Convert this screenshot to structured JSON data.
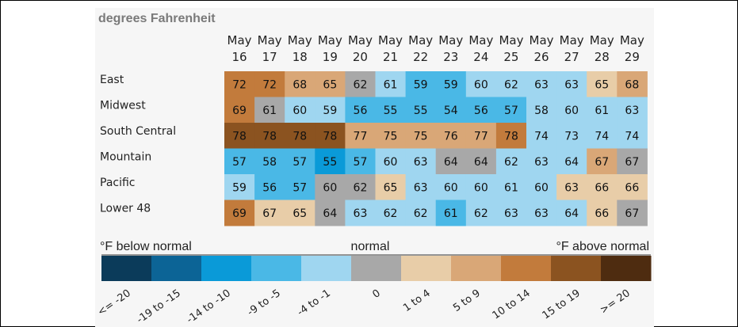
{
  "chart_data": {
    "type": "heatmap",
    "title": "degrees Fahrenheit",
    "columns": [
      [
        "May",
        "16"
      ],
      [
        "May",
        "17"
      ],
      [
        "May",
        "18"
      ],
      [
        "May",
        "19"
      ],
      [
        "May",
        "20"
      ],
      [
        "May",
        "21"
      ],
      [
        "May",
        "22"
      ],
      [
        "May",
        "23"
      ],
      [
        "May",
        "24"
      ],
      [
        "May",
        "25"
      ],
      [
        "May",
        "26"
      ],
      [
        "May",
        "27"
      ],
      [
        "May",
        "28"
      ],
      [
        "May",
        "29"
      ]
    ],
    "rows": [
      "East",
      "Midwest",
      "South Central",
      "Mountain",
      "Pacific",
      "Lower 48"
    ],
    "values": [
      [
        72,
        72,
        68,
        65,
        62,
        61,
        59,
        59,
        60,
        62,
        63,
        63,
        65,
        68
      ],
      [
        69,
        61,
        60,
        59,
        56,
        55,
        55,
        54,
        56,
        57,
        58,
        60,
        61,
        63
      ],
      [
        78,
        78,
        78,
        78,
        77,
        75,
        75,
        76,
        77,
        78,
        74,
        73,
        74,
        74
      ],
      [
        57,
        58,
        57,
        55,
        57,
        60,
        63,
        64,
        64,
        62,
        63,
        64,
        67,
        67
      ],
      [
        59,
        56,
        57,
        60,
        62,
        65,
        63,
        60,
        60,
        61,
        60,
        63,
        66,
        66
      ],
      [
        69,
        67,
        65,
        64,
        63,
        62,
        62,
        61,
        62,
        63,
        63,
        64,
        66,
        67
      ]
    ],
    "anomaly_class": [
      [
        8,
        8,
        7,
        7,
        5,
        4,
        3,
        3,
        4,
        4,
        4,
        4,
        6,
        7
      ],
      [
        8,
        5,
        4,
        4,
        3,
        3,
        3,
        3,
        3,
        3,
        4,
        4,
        4,
        4
      ],
      [
        9,
        9,
        9,
        9,
        7,
        7,
        7,
        7,
        7,
        8,
        4,
        4,
        4,
        4
      ],
      [
        3,
        3,
        3,
        2,
        3,
        4,
        4,
        5,
        5,
        4,
        4,
        4,
        7,
        5
      ],
      [
        4,
        3,
        3,
        5,
        5,
        6,
        4,
        4,
        4,
        4,
        4,
        6,
        6,
        6
      ],
      [
        8,
        6,
        6,
        5,
        4,
        4,
        4,
        3,
        4,
        4,
        4,
        4,
        6,
        5
      ]
    ],
    "legend": {
      "left_label": "°F below normal",
      "center_label": "normal",
      "right_label": "°F above normal",
      "bins": [
        "<= -20",
        "-19 to -15",
        "-14 to -10",
        "-9 to -5",
        "-4 to -1",
        "0",
        "1 to 4",
        "5 to 9",
        "10 to 14",
        "15 to 19",
        ">= 20"
      ],
      "colors": [
        "#0b3b5a",
        "#0c6496",
        "#0a9ad8",
        "#4ab8e6",
        "#9fd6f0",
        "#a8a8a8",
        "#e8cda8",
        "#d9a777",
        "#c27b3c",
        "#8b5320",
        "#4e2c10"
      ]
    }
  }
}
